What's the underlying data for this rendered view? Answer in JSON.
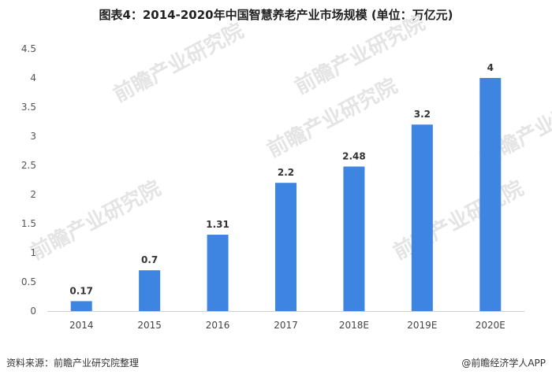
{
  "chart_data": {
    "type": "bar",
    "title": "图表4：2014-2020年中国智慧养老产业市场规模 (单位：万亿元)",
    "categories": [
      "2014",
      "2015",
      "2016",
      "2017",
      "2018E",
      "2019E",
      "2020E"
    ],
    "values": [
      0.17,
      0.7,
      1.31,
      2.2,
      2.48,
      3.2,
      4
    ],
    "data_labels": [
      "0.17",
      "0.7",
      "1.31",
      "2.2",
      "2.48",
      "3.2",
      "4"
    ],
    "ylim": [
      0,
      4.5
    ],
    "yticks": [
      0,
      0.5,
      1,
      1.5,
      2,
      2.5,
      3,
      3.5,
      4,
      4.5
    ],
    "ytick_labels": [
      "0",
      "0.5",
      "1",
      "1.5",
      "2",
      "2.5",
      "3",
      "3.5",
      "4",
      "4.5"
    ],
    "xlabel": "",
    "ylabel": "",
    "grid": false,
    "bar_color": "#3d85e0"
  },
  "footer": {
    "source": "资料来源：前瞻产业研究院整理",
    "credit": "@前瞻经济学人APP"
  },
  "watermark": {
    "text": "前瞻产业研究院",
    "color": "#e4e4e4"
  }
}
